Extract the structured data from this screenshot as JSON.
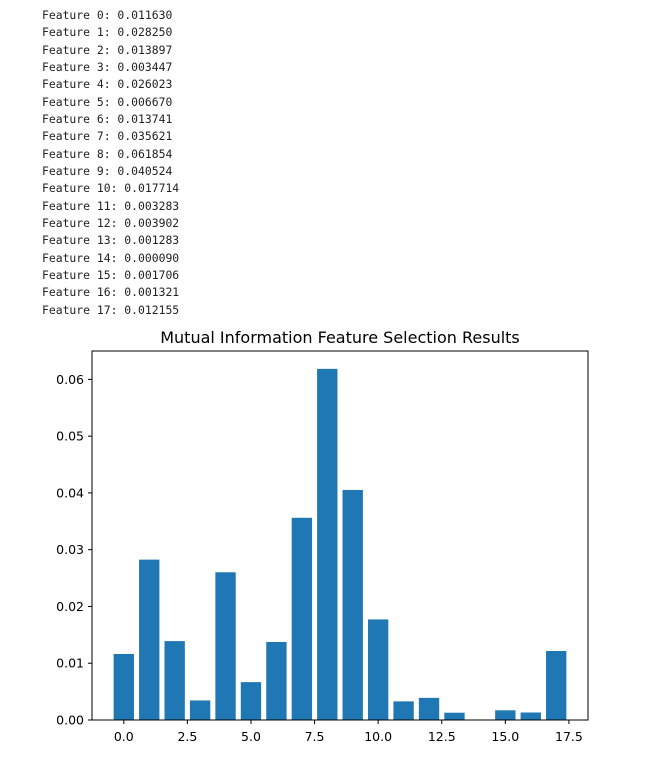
{
  "console_lines": [
    "Feature 0: 0.011630",
    "Feature 1: 0.028250",
    "Feature 2: 0.013897",
    "Feature 3: 0.003447",
    "Feature 4: 0.026023",
    "Feature 5: 0.006670",
    "Feature 6: 0.013741",
    "Feature 7: 0.035621",
    "Feature 8: 0.061854",
    "Feature 9: 0.040524",
    "Feature 10: 0.017714",
    "Feature 11: 0.003283",
    "Feature 12: 0.003902",
    "Feature 13: 0.001283",
    "Feature 14: 0.000090",
    "Feature 15: 0.001706",
    "Feature 16: 0.001321",
    "Feature 17: 0.012155"
  ],
  "chart_data": {
    "type": "bar",
    "title": "Mutual Information Feature Selection Results",
    "xlabel": "",
    "ylabel": "",
    "x": [
      0,
      1,
      2,
      3,
      4,
      5,
      6,
      7,
      8,
      9,
      10,
      11,
      12,
      13,
      14,
      15,
      16,
      17
    ],
    "values": [
      0.01163,
      0.02825,
      0.013897,
      0.003447,
      0.026023,
      0.00667,
      0.013741,
      0.035621,
      0.061854,
      0.040524,
      0.017714,
      0.003283,
      0.003902,
      0.001283,
      9e-05,
      0.001706,
      0.001321,
      0.012155
    ],
    "xlim": [
      -1.25,
      18.25
    ],
    "ylim": [
      0,
      0.065
    ],
    "xticks": [
      0,
      2.5,
      5,
      7.5,
      10,
      12.5,
      15,
      17.5
    ],
    "xtick_labels": [
      "0.0",
      "2.5",
      "5.0",
      "7.5",
      "10.0",
      "12.5",
      "15.0",
      "17.5"
    ],
    "yticks": [
      0,
      0.01,
      0.02,
      0.03,
      0.04,
      0.05,
      0.06
    ],
    "ytick_labels": [
      "0.00",
      "0.01",
      "0.02",
      "0.03",
      "0.04",
      "0.05",
      "0.06"
    ],
    "bar_width": 0.8,
    "bar_color": "#1f77b4",
    "grid": false,
    "legend": "none"
  }
}
